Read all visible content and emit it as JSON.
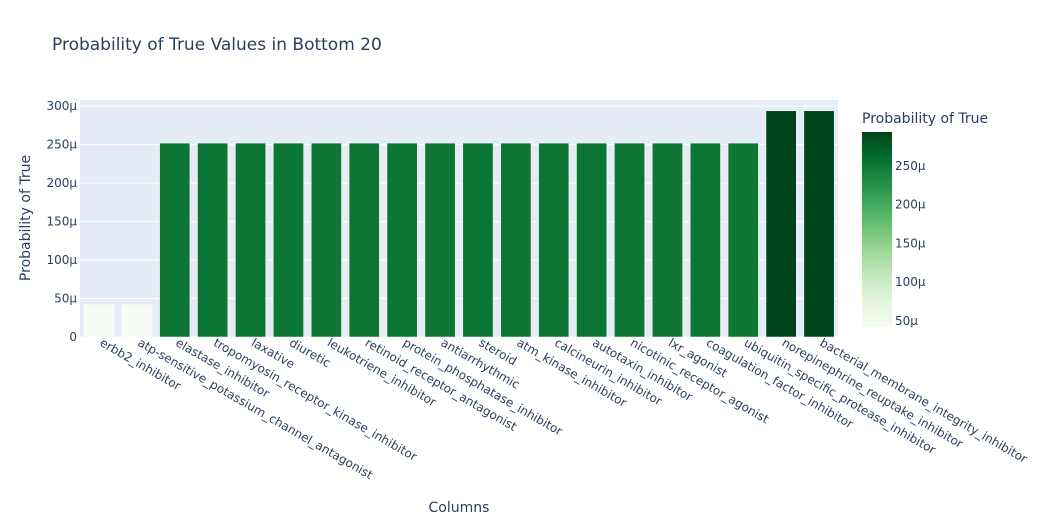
{
  "chart_data": {
    "type": "bar",
    "title": "Probability of True Values in Bottom 20",
    "xlabel": "Columns",
    "ylabel": "Probability of True",
    "colorbar_title": "Probability of True",
    "categories": [
      "erbb2_inhibitor",
      "atp-sensitive_potassium_channel_antagonist",
      "elastase_inhibitor",
      "tropomyosin_receptor_kinase_inhibitor",
      "laxative",
      "diuretic",
      "leukotriene_inhibitor",
      "retinoid_receptor_antagonist",
      "protein_phosphatase_inhibitor",
      "antiarrhythmic",
      "steroid",
      "atm_kinase_inhibitor",
      "calcineurin_inhibitor",
      "autotaxin_inhibitor",
      "nicotinic_receptor_agonist",
      "lxr_agonist",
      "coagulation_factor_inhibitor",
      "ubiquitin_specific_protease_inhibitor",
      "norepinephrine_reuptake_inhibitor",
      "bacterial_membrane_integrity_inhibitor"
    ],
    "values": [
      4.2e-05,
      4.2e-05,
      0.000252,
      0.000252,
      0.000252,
      0.000252,
      0.000252,
      0.000252,
      0.000252,
      0.000252,
      0.000252,
      0.000252,
      0.000252,
      0.000252,
      0.000252,
      0.000252,
      0.000252,
      0.000252,
      0.000294,
      0.000294
    ],
    "ylim": [
      0,
      0.000308
    ],
    "yticks": [
      0,
      5e-05,
      0.0001,
      0.00015,
      0.0002,
      0.00025,
      0.0003
    ],
    "ytick_labels": [
      "0",
      "50μ",
      "100μ",
      "150μ",
      "200μ",
      "250μ",
      "300μ"
    ],
    "colorbar": {
      "range": [
        4.2e-05,
        0.000294
      ],
      "ticks": [
        5e-05,
        0.0001,
        0.00015,
        0.0002,
        0.00025
      ],
      "tick_labels": [
        "50μ",
        "100μ",
        "150μ",
        "200μ",
        "250μ"
      ],
      "colorscale": "Greens",
      "colors": [
        "#f7fcf5",
        "#e5f5e0",
        "#c7e9c0",
        "#a1d99b",
        "#74c476",
        "#41ab5d",
        "#238b45",
        "#006d2c",
        "#00441b"
      ]
    },
    "grid": true,
    "plot_bgcolor": "#e5ecf6",
    "legend": "colorbar-right"
  }
}
